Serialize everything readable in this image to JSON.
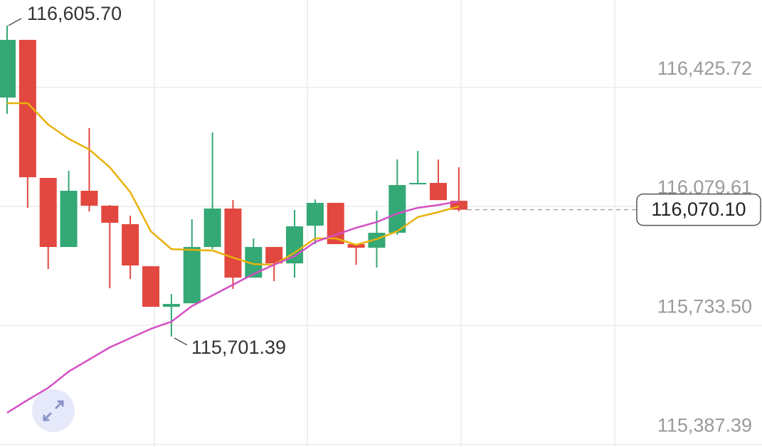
{
  "chart_data": {
    "type": "candlestick",
    "ylim": [
      115380,
      116680
    ],
    "yticks": [
      {
        "value": 116425.72,
        "label": "116,425.72"
      },
      {
        "value": 116079.61,
        "label": "116,079.61"
      },
      {
        "value": 115733.5,
        "label": "115,733.50"
      },
      {
        "value": 115387.39,
        "label": "115,387.39"
      }
    ],
    "grid": true,
    "up_color": "#34a875",
    "down_color": "#e2483f",
    "open": [
      116396.4,
      116564.1,
      116162.5,
      115961.7,
      116125.2,
      116081.8,
      116028.0,
      115905.8,
      115787.8,
      115798.0,
      115961.7,
      116073.5,
      115872.7,
      115961.7,
      115914.0,
      116023.7,
      116090.0,
      115970.0,
      115959.6,
      116003.0,
      116144.0,
      116148.0,
      116096.0
    ],
    "high": [
      116605.7,
      116564.1,
      116162.5,
      116183.2,
      116307.4,
      116083.8,
      116052.8,
      115905.8,
      115825.0,
      116042.4,
      116295.0,
      116098.3,
      115986.5,
      115961.7,
      116069.4,
      116100.0,
      116090.0,
      115970.0,
      116067.0,
      116216.3,
      116241.0,
      116216.0,
      116193.5
    ],
    "low": [
      116349.0,
      116075.6,
      115897.5,
      115961.7,
      116065.0,
      115841.6,
      115868.6,
      115787.8,
      115701.39,
      115798.0,
      115955.5,
      115839.6,
      115872.7,
      115862.4,
      115872.7,
      115970.0,
      115970.0,
      115910.0,
      115901.7,
      115997.0,
      116144.0,
      116098.0,
      116065.0
    ],
    "close": [
      116564.1,
      116164.6,
      115961.7,
      116125.2,
      116081.8,
      116032.1,
      115907.9,
      115787.8,
      115796.0,
      115961.7,
      116073.5,
      115872.7,
      115961.7,
      115914.0,
      116021.7,
      116090.0,
      115970.0,
      115959.6,
      116003.0,
      116141.8,
      116148.0,
      116098.0,
      116070.1
    ],
    "series": [
      {
        "color": "#e8b10c",
        "values": [
          116379.9,
          116379.9,
          116317.8,
          116276.4,
          116245.3,
          116193.5,
          116121.1,
          116007.3,
          115955.5,
          115953.4,
          115951.4,
          115930.7,
          115912.0,
          115910.0,
          115945.2,
          115986.6,
          115986.6,
          115967.9,
          115984.5,
          116007.3,
          116048.7,
          116063.1,
          116079.7
        ]
      },
      {
        "color": "#d44fc4",
        "values": [
          115479.4,
          115516.7,
          115551.9,
          115599.5,
          115634.6,
          115669.8,
          115696.8,
          115723.7,
          115744.4,
          115789.9,
          115820.9,
          115852.0,
          115883.0,
          115910.0,
          115934.8,
          115976.2,
          115996.9,
          116017.6,
          116034.2,
          116059.0,
          116075.6,
          116083.8,
          116094.2
        ]
      }
    ],
    "high_label": {
      "value": 116605.7,
      "label": "116,605.70"
    },
    "low_label": {
      "value": 115701.39,
      "label": "115,701.39"
    },
    "last_price": {
      "value": 116070.1,
      "label": "116,070.10"
    }
  }
}
